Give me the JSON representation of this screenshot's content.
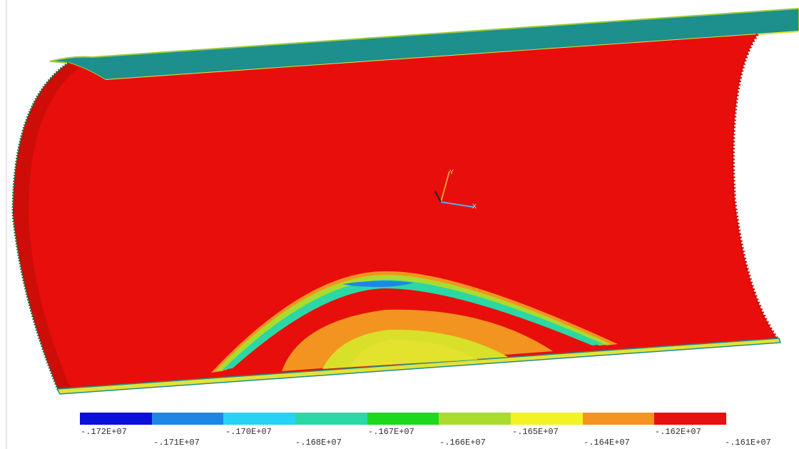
{
  "viewport": {
    "background": "#ffffff",
    "model": "cylindrical-shell-section",
    "shell_interior_color": "#e80e0b",
    "shell_edge_color": "#1d8f8c",
    "axis_triad_icon": "xyz-axis-triad-icon"
  },
  "legend": {
    "colors": [
      "#0a10d8",
      "#1f86e6",
      "#26d3f3",
      "#2bd7a6",
      "#1ed81e",
      "#a9dc2f",
      "#f2f224",
      "#f49420",
      "#e61010"
    ],
    "labels_top": [
      "-.172E+07",
      "-.170E+07",
      "-.167E+07",
      "-.165E+07",
      "-.162E+07"
    ],
    "labels_bottom": [
      "-.171E+07",
      "-.168E+07",
      "-.166E+07",
      "-.164E+07",
      "-.161E+07"
    ]
  }
}
